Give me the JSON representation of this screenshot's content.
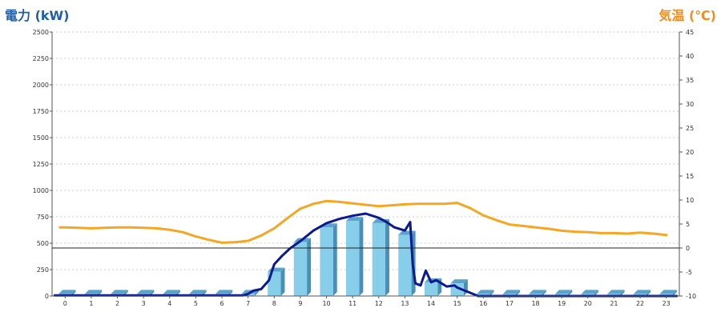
{
  "chart_data": {
    "type": "bar",
    "ylabel": "電力 (kW)",
    "y2label": "気温 (℃)",
    "categories": [
      "0",
      "1",
      "2",
      "3",
      "4",
      "5",
      "6",
      "7",
      "8",
      "9",
      "10",
      "11",
      "12",
      "13",
      "14",
      "15",
      "16",
      "17",
      "18",
      "19",
      "20",
      "21",
      "22",
      "23"
    ],
    "ylim": [
      0,
      2500
    ],
    "y_ticks": [
      "0",
      "250",
      "500",
      "750",
      "1000",
      "1250",
      "1500",
      "1750",
      "2000",
      "2250",
      "2500"
    ],
    "y2lim": [
      -10,
      45
    ],
    "y2_ticks": [
      "-10",
      "-5",
      "0",
      "5",
      "10",
      "15",
      "20",
      "25",
      "30",
      "35",
      "40",
      "45"
    ],
    "grid": true,
    "series": [
      {
        "kind": "bar",
        "values": [
          20,
          20,
          20,
          20,
          20,
          20,
          20,
          20,
          230,
          510,
          650,
          710,
          690,
          580,
          130,
          120,
          20,
          20,
          20,
          20,
          20,
          20,
          20,
          20
        ],
        "color": "#87ceeb"
      },
      {
        "kind": "line",
        "x": [
          -0.2,
          0,
          0.5,
          1,
          1.5,
          2,
          2.5,
          3,
          3.5,
          4,
          4.5,
          5,
          5.5,
          6,
          6.5,
          7,
          7.5,
          8,
          8.5,
          9,
          9.5,
          10,
          10.5,
          11,
          11.5,
          12,
          12.5,
          13,
          13.5,
          14,
          14.5,
          15,
          15.5,
          16,
          16.5,
          17,
          17.5,
          18,
          18.5,
          19,
          19.5,
          20,
          20.5,
          21,
          21.5,
          22,
          22.5,
          23
        ],
        "values": [
          4.3,
          4.3,
          4.2,
          4.1,
          4.2,
          4.3,
          4.3,
          4.2,
          4.1,
          3.8,
          3.3,
          2.4,
          1.7,
          1.1,
          1.2,
          1.5,
          2.6,
          4.1,
          6.2,
          8.2,
          9.2,
          9.8,
          9.6,
          9.3,
          9.0,
          8.7,
          8.9,
          9.1,
          9.2,
          9.2,
          9.2,
          9.4,
          8.3,
          6.8,
          5.8,
          4.9,
          4.6,
          4.3,
          4.0,
          3.6,
          3.4,
          3.3,
          3.1,
          3.1,
          3.0,
          3.2,
          3.0,
          2.7
        ],
        "color": "#f5a623"
      },
      {
        "kind": "line",
        "x": [
          -0.4,
          0,
          1,
          2,
          3,
          4,
          5,
          6,
          6.8,
          7,
          7.2,
          7.5,
          7.8,
          8,
          8.3,
          8.6,
          9,
          9.5,
          10,
          10.5,
          11,
          11.5,
          12,
          12.3,
          12.6,
          13,
          13.2,
          13.3,
          13.4,
          13.6,
          13.8,
          14,
          14.2,
          14.4,
          14.6,
          14.9,
          15,
          15.2,
          15.5,
          15.8,
          16,
          17,
          18,
          19,
          20,
          21,
          22,
          23.4
        ],
        "values": [
          5,
          5,
          5,
          5,
          5,
          5,
          5,
          5,
          5,
          20,
          50,
          65,
          150,
          300,
          380,
          450,
          520,
          620,
          690,
          730,
          760,
          780,
          740,
          700,
          650,
          620,
          700,
          300,
          120,
          100,
          240,
          130,
          150,
          120,
          90,
          100,
          80,
          60,
          30,
          0,
          0,
          0,
          0,
          0,
          0,
          0,
          0,
          0
        ],
        "color": "#0b1a8f"
      }
    ]
  }
}
